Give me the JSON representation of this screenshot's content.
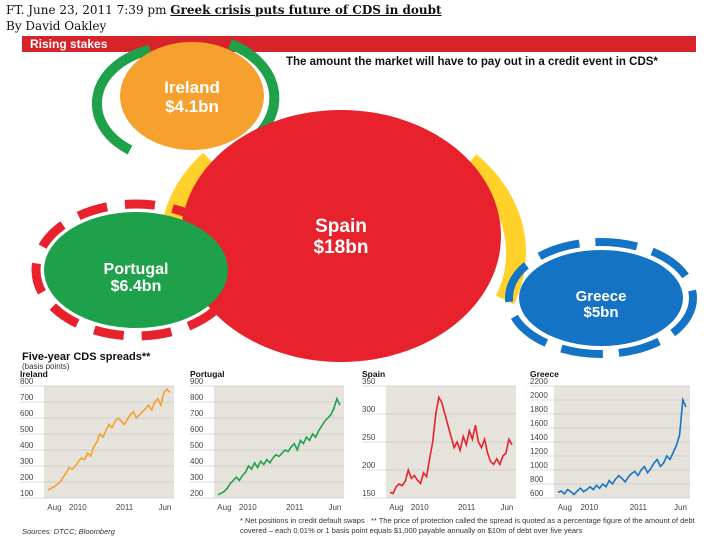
{
  "header": {
    "line1_prefix": "FT. June 23, 2011 7:39 pm ",
    "line1_link": "Greek crisis puts future of CDS in doubt",
    "line2": "By David Oakley"
  },
  "banner": {
    "title": "Rising stakes",
    "color": "#d7232a"
  },
  "subtitle": "The amount the market will have to pay out in a credit event in CDS*",
  "bubbles": [
    {
      "country": "Ireland",
      "value": "$4.1bn",
      "color": "#f6a02d"
    },
    {
      "country": "Spain",
      "value": "$18bn",
      "color": "#e8222c"
    },
    {
      "country": "Portugal",
      "value": "$6.4bn",
      "color": "#1fa04b"
    },
    {
      "country": "Greece",
      "value": "$5bn",
      "color": "#1573c5"
    }
  ],
  "spreads_title": "Five-year CDS spreads**",
  "spreads_unit": "(basis points)",
  "chart_data": [
    {
      "type": "line",
      "title": "Ireland",
      "color": "#f6a02d",
      "ylim": [
        100,
        800
      ],
      "ticks": [
        100,
        200,
        300,
        400,
        500,
        600,
        700,
        800
      ],
      "xlabels": [
        "Aug",
        "2010",
        "2011",
        "Jun"
      ],
      "values": [
        150,
        160,
        170,
        185,
        200,
        230,
        260,
        290,
        280,
        300,
        330,
        350,
        340,
        380,
        360,
        420,
        450,
        500,
        480,
        520,
        560,
        540,
        580,
        600,
        580,
        560,
        590,
        620,
        640,
        600,
        620,
        640,
        660,
        680,
        650,
        700,
        720,
        680,
        760,
        780,
        760
      ]
    },
    {
      "type": "line",
      "title": "Portugal",
      "color": "#1fa04b",
      "ylim": [
        200,
        900
      ],
      "ticks": [
        200,
        300,
        400,
        500,
        600,
        700,
        800,
        900
      ],
      "xlabels": [
        "Aug",
        "2010",
        "2011",
        "Jun"
      ],
      "values": [
        220,
        230,
        240,
        260,
        290,
        310,
        330,
        310,
        340,
        360,
        400,
        380,
        420,
        390,
        430,
        410,
        440,
        420,
        450,
        470,
        460,
        480,
        500,
        490,
        520,
        540,
        500,
        560,
        540,
        580,
        560,
        600,
        580,
        620,
        650,
        680,
        700,
        720,
        760,
        820,
        780
      ]
    },
    {
      "type": "line",
      "title": "Spain",
      "color": "#e8222c",
      "ylim": [
        150,
        350
      ],
      "ticks": [
        150,
        200,
        250,
        300,
        350
      ],
      "xlabels": [
        "Aug",
        "2010",
        "2011",
        "Jun"
      ],
      "values": [
        160,
        158,
        170,
        175,
        172,
        180,
        200,
        185,
        190,
        182,
        176,
        195,
        188,
        220,
        250,
        300,
        330,
        320,
        300,
        280,
        260,
        240,
        250,
        235,
        260,
        245,
        270,
        255,
        280,
        250,
        240,
        255,
        230,
        215,
        210,
        220,
        210,
        225,
        230,
        255,
        245
      ]
    },
    {
      "type": "line",
      "title": "Greece",
      "color": "#1573c5",
      "ylim": [
        600,
        2200
      ],
      "ticks": [
        600,
        800,
        1000,
        1200,
        1400,
        1600,
        1800,
        2000,
        2200
      ],
      "xlabels": [
        "Aug",
        "2010",
        "2011",
        "Jun"
      ],
      "values": [
        680,
        700,
        660,
        720,
        690,
        650,
        700,
        740,
        690,
        720,
        760,
        720,
        780,
        740,
        800,
        760,
        850,
        800,
        870,
        920,
        880,
        830,
        900,
        950,
        980,
        920,
        1000,
        1050,
        960,
        1020,
        1100,
        1150,
        1050,
        1100,
        1200,
        1150,
        1250,
        1350,
        1500,
        2000,
        1900
      ]
    }
  ],
  "sources": "Sources: DTCC; Bloomberg",
  "footnote_star": "* Net positions in credit default swaps",
  "footnote_dstar": "** The price of protection called the spread is quoted as a percentage figure of the amount of debt covered – each 0.01% or 1 basis point equals $1,000 payable annually on $10m of debt over five years"
}
